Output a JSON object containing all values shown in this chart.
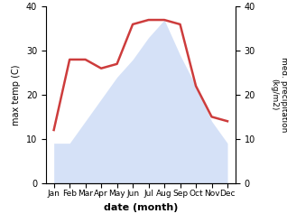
{
  "months": [
    "Jan",
    "Feb",
    "Mar",
    "Apr",
    "May",
    "Jun",
    "Jul",
    "Aug",
    "Sep",
    "Oct",
    "Nov",
    "Dec"
  ],
  "temperature": [
    9,
    9,
    14,
    19,
    24,
    28,
    33,
    37,
    29,
    22,
    14,
    9
  ],
  "precipitation": [
    12,
    28,
    28,
    26,
    27,
    36,
    37,
    37,
    36,
    22,
    15,
    14
  ],
  "temp_fill_color": "#c8d8f5",
  "temp_fill_alpha": 0.75,
  "precip_color": "#cd3c3c",
  "xlabel": "date (month)",
  "ylabel_left": "max temp (C)",
  "ylabel_right": "med. precipitation\n(kg/m2)",
  "ylim": [
    0,
    40
  ],
  "yticks": [
    0,
    10,
    20,
    30,
    40
  ],
  "background_color": "#ffffff"
}
